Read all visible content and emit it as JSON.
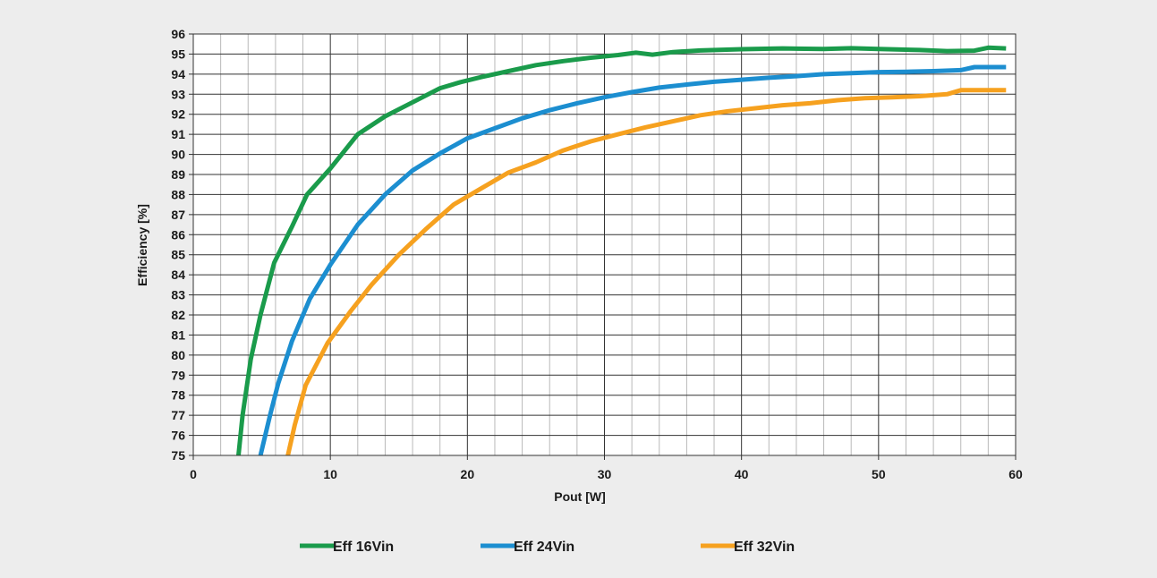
{
  "chart_data": {
    "type": "line",
    "title": "",
    "xlabel": "Pout [W]",
    "ylabel": "Efficiency [%]",
    "xlim": [
      0,
      60
    ],
    "ylim": [
      75,
      96
    ],
    "xticks": [
      0,
      10,
      20,
      30,
      40,
      50,
      60
    ],
    "yticks": [
      75,
      76,
      77,
      78,
      79,
      80,
      81,
      82,
      83,
      84,
      85,
      86,
      87,
      88,
      89,
      90,
      91,
      92,
      93,
      94,
      95,
      96
    ],
    "grid": true,
    "legend_position": "bottom",
    "background": "#ededed",
    "plot_background": "#ffffff",
    "series": [
      {
        "name": "Eff 16Vin",
        "color": "#1a9b4b",
        "points": [
          [
            3.3,
            75
          ],
          [
            3.6,
            77
          ],
          [
            4.2,
            79.8
          ],
          [
            4.9,
            82
          ],
          [
            5.9,
            84.6
          ],
          [
            7.2,
            86.4
          ],
          [
            8.3,
            88
          ],
          [
            10,
            89.3
          ],
          [
            12,
            91
          ],
          [
            14,
            91.9
          ],
          [
            16,
            92.6
          ],
          [
            18,
            93.3
          ],
          [
            19.5,
            93.6
          ],
          [
            21,
            93.85
          ],
          [
            23,
            94.15
          ],
          [
            25,
            94.45
          ],
          [
            27,
            94.65
          ],
          [
            29,
            94.82
          ],
          [
            31,
            94.95
          ],
          [
            32.3,
            95.07
          ],
          [
            33.5,
            94.97
          ],
          [
            35,
            95.1
          ],
          [
            37,
            95.18
          ],
          [
            40,
            95.24
          ],
          [
            43,
            95.28
          ],
          [
            46,
            95.25
          ],
          [
            48,
            95.29
          ],
          [
            50,
            95.25
          ],
          [
            53,
            95.2
          ],
          [
            55,
            95.15
          ],
          [
            57,
            95.17
          ],
          [
            58,
            95.32
          ],
          [
            59.3,
            95.28
          ]
        ]
      },
      {
        "name": "Eff 24Vin",
        "color": "#1c8ed0",
        "points": [
          [
            4.9,
            75
          ],
          [
            5.6,
            77
          ],
          [
            6.2,
            78.6
          ],
          [
            7.2,
            80.7
          ],
          [
            8.5,
            82.8
          ],
          [
            10,
            84.5
          ],
          [
            12,
            86.5
          ],
          [
            14,
            88
          ],
          [
            16,
            89.2
          ],
          [
            18,
            90.05
          ],
          [
            20,
            90.8
          ],
          [
            22,
            91.3
          ],
          [
            24,
            91.8
          ],
          [
            26,
            92.2
          ],
          [
            28,
            92.55
          ],
          [
            30,
            92.85
          ],
          [
            32,
            93.1
          ],
          [
            34,
            93.33
          ],
          [
            36,
            93.48
          ],
          [
            38,
            93.62
          ],
          [
            40,
            93.72
          ],
          [
            42,
            93.82
          ],
          [
            44,
            93.9
          ],
          [
            46,
            94
          ],
          [
            48,
            94.05
          ],
          [
            50,
            94.1
          ],
          [
            52,
            94.12
          ],
          [
            54,
            94.15
          ],
          [
            56,
            94.2
          ],
          [
            57,
            94.35
          ],
          [
            59.3,
            94.35
          ]
        ]
      },
      {
        "name": "Eff 32Vin",
        "color": "#f6a11f",
        "points": [
          [
            6.9,
            75
          ],
          [
            7.4,
            76.5
          ],
          [
            8.2,
            78.5
          ],
          [
            9.8,
            80.6
          ],
          [
            11.5,
            82.2
          ],
          [
            13,
            83.5
          ],
          [
            15,
            85
          ],
          [
            17,
            86.3
          ],
          [
            19,
            87.5
          ],
          [
            21,
            88.3
          ],
          [
            23,
            89.1
          ],
          [
            25,
            89.6
          ],
          [
            27,
            90.2
          ],
          [
            29,
            90.65
          ],
          [
            31,
            91
          ],
          [
            33,
            91.35
          ],
          [
            35,
            91.65
          ],
          [
            37,
            91.95
          ],
          [
            39,
            92.15
          ],
          [
            41,
            92.3
          ],
          [
            43,
            92.45
          ],
          [
            45,
            92.55
          ],
          [
            47,
            92.7
          ],
          [
            49,
            92.8
          ],
          [
            51,
            92.85
          ],
          [
            53,
            92.9
          ],
          [
            55,
            93
          ],
          [
            56,
            93.2
          ],
          [
            59.3,
            93.2
          ]
        ]
      }
    ]
  }
}
